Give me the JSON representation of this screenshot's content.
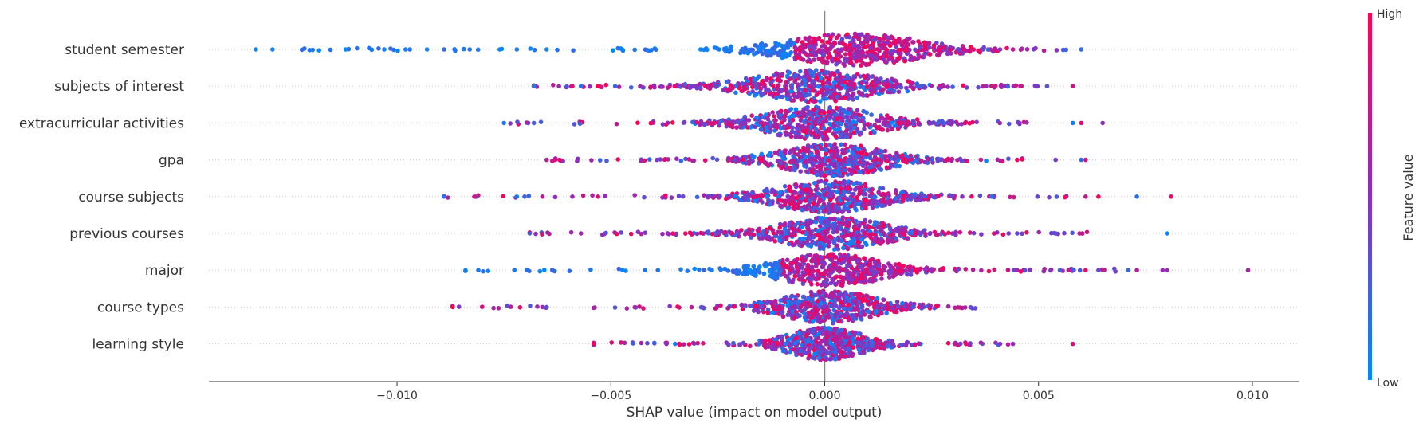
{
  "chart_data": {
    "type": "scatter",
    "subtype": "shap-beeswarm",
    "title": "",
    "xlabel": "SHAP value (impact on model output)",
    "ylabel": "",
    "xlim": [
      -0.0144,
      0.0111
    ],
    "xticks": [
      -0.01,
      -0.005,
      0.0,
      0.005,
      0.01
    ],
    "xtick_labels": [
      "−0.010",
      "−0.005",
      "0.000",
      "0.005",
      "0.010"
    ],
    "features": [
      {
        "name": "student semester",
        "min": -0.0133,
        "max": 0.006,
        "center": 0.0007,
        "spread": 0.0014,
        "low_side": "negative",
        "outliers": [
          -0.0133,
          -0.0112,
          -0.0106,
          -0.0103,
          -0.0098,
          -0.0097,
          -0.0093,
          -0.0089,
          -0.0083,
          -0.0076,
          -0.0072,
          -0.0065,
          0.0037,
          0.0041,
          0.0044,
          0.006
        ]
      },
      {
        "name": "subjects of interest",
        "min": -0.0068,
        "max": 0.0058,
        "center": -0.0002,
        "spread": 0.0013,
        "low_side": "mixed",
        "outliers": [
          -0.0068,
          -0.0059,
          -0.0057,
          -0.0053,
          -0.0049,
          0.0039,
          0.0042,
          0.0046,
          0.0052,
          0.0058
        ]
      },
      {
        "name": "extracurricular activities",
        "min": -0.0075,
        "max": 0.0065,
        "center": -0.0001,
        "spread": 0.0012,
        "low_side": "mixed",
        "outliers": [
          -0.0075,
          -0.0068,
          0.0058,
          0.006,
          0.0065
        ]
      },
      {
        "name": "gpa",
        "min": -0.0065,
        "max": 0.0061,
        "center": 0.0002,
        "spread": 0.0011,
        "low_side": "mixed",
        "outliers": [
          -0.0065,
          -0.0063,
          -0.0062,
          0.0045,
          0.0054,
          0.006,
          0.0061
        ]
      },
      {
        "name": "course subjects",
        "min": -0.0089,
        "max": 0.0081,
        "center": 0.0001,
        "spread": 0.0011,
        "low_side": "mixed",
        "outliers": [
          -0.0089,
          -0.0072,
          -0.0066,
          -0.0059,
          -0.0053,
          0.0039,
          0.0061,
          0.0064,
          0.0073,
          0.0081
        ]
      },
      {
        "name": "previous courses",
        "min": -0.0069,
        "max": 0.008,
        "center": 0.0002,
        "spread": 0.0011,
        "low_side": "mixed",
        "outliers": [
          -0.0069,
          -0.0057,
          0.0043,
          0.0045,
          0.0054,
          0.008
        ]
      },
      {
        "name": "major",
        "min": -0.0084,
        "max": 0.0099,
        "center": 0.0001,
        "spread": 0.0011,
        "low_side": "negative",
        "outliers": [
          -0.0084,
          -0.0081,
          -0.0042,
          -0.0039,
          0.0045,
          0.0055,
          0.0057,
          0.0061,
          0.0064,
          0.0071,
          0.0073,
          0.0079,
          0.008,
          0.0099
        ]
      },
      {
        "name": "course types",
        "min": -0.0087,
        "max": 0.0036,
        "center": 0.0001,
        "spread": 0.001,
        "low_side": "mixed",
        "outliers": [
          -0.0087,
          -0.0066,
          -0.0065
        ]
      },
      {
        "name": "learning style",
        "min": -0.0054,
        "max": 0.0058,
        "center": 0.0,
        "spread": 0.0008,
        "low_side": "mixed",
        "outliers": [
          -0.0054,
          -0.0037,
          -0.0035,
          -0.0034,
          0.0033,
          0.0041,
          0.0044,
          0.0058
        ]
      }
    ],
    "colorbar": {
      "title": "Feature value",
      "high_label": "High",
      "low_label": "Low",
      "high_color": "#ff0052",
      "low_color": "#008bfb"
    },
    "zero_line": true,
    "row_grid": "dotted"
  }
}
